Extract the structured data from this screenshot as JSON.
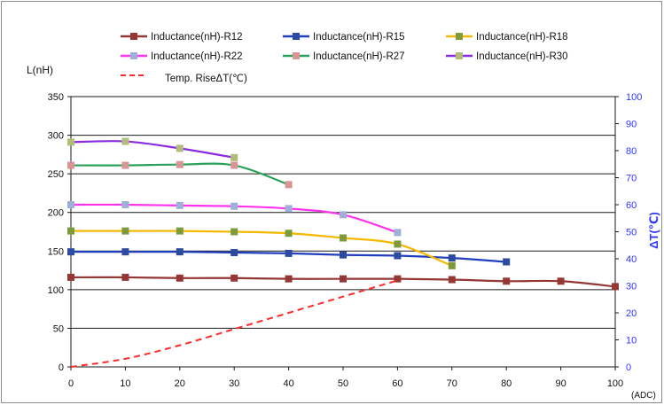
{
  "chart_data": {
    "type": "line",
    "ylabel": "L(nH)",
    "y2label": "ΔT(℃)",
    "xunit": "(ADC)",
    "xlim": [
      0,
      100
    ],
    "ylim": [
      0,
      350
    ],
    "y2lim": [
      0,
      100
    ],
    "x_ticks": [
      0,
      10,
      20,
      30,
      40,
      50,
      60,
      70,
      80,
      90,
      100
    ],
    "y_ticks": [
      0,
      50,
      100,
      150,
      200,
      250,
      300,
      350
    ],
    "y2_ticks": [
      0,
      10,
      20,
      30,
      40,
      50,
      60,
      70,
      80,
      90,
      100
    ],
    "grid": "horizontal",
    "legend_position": "top",
    "series": [
      {
        "name": "Inductance(nH)-R12",
        "color": "#953735",
        "marker": "#953735",
        "x": [
          0,
          10,
          20,
          30,
          40,
          50,
          60,
          70,
          80,
          90,
          100
        ],
        "y": [
          116,
          116,
          115,
          115,
          114,
          114,
          114,
          113,
          111,
          111,
          104
        ]
      },
      {
        "name": "Inductance(nH)-R15",
        "color": "#1f3fbf",
        "marker": "#2c4ba0",
        "x": [
          0,
          10,
          20,
          30,
          40,
          50,
          60,
          70,
          80
        ],
        "y": [
          149,
          149,
          149,
          148,
          147,
          145,
          144,
          141,
          136
        ]
      },
      {
        "name": "Inductance(nH)-R18",
        "color": "#f5b800",
        "marker": "#7d9a3c",
        "x": [
          0,
          10,
          20,
          30,
          40,
          50,
          60,
          70
        ],
        "y": [
          176,
          176,
          176,
          175,
          173,
          167,
          159,
          131
        ]
      },
      {
        "name": "Inductance(nH)-R22",
        "color": "#ff33ee",
        "marker": "#9fb0d8",
        "x": [
          0,
          10,
          20,
          30,
          40,
          50,
          60
        ],
        "y": [
          210,
          210,
          209,
          208,
          205,
          197,
          174
        ]
      },
      {
        "name": "Inductance(nH)-R27",
        "color": "#2aa15a",
        "marker": "#d99594",
        "x": [
          0,
          10,
          20,
          30,
          40
        ],
        "y": [
          261,
          261,
          262,
          261,
          236
        ]
      },
      {
        "name": "Inductance(nH)-R30",
        "color": "#8a2be2",
        "marker": "#b0bd7a",
        "x": [
          0,
          10,
          20,
          30
        ],
        "y": [
          291,
          292,
          283,
          271
        ]
      }
    ],
    "temp_series": {
      "name": "Temp. RiseΔT(℃)",
      "color": "#ff2a2a",
      "axis": "right",
      "x": [
        0,
        10,
        20,
        30,
        40,
        50,
        60
      ],
      "y": [
        0,
        3,
        8,
        14,
        20,
        26,
        32
      ]
    }
  }
}
